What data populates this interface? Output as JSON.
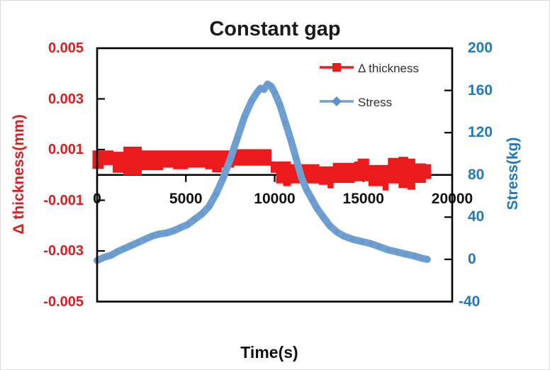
{
  "colors": {
    "thickness_series": "#EC1B1B",
    "thickness_axis_text": "#D61F23",
    "stress_series": "#6EA0D2",
    "stress_marker": "#5E90C6",
    "stress_axis_text": "#2478B8",
    "title_text": "#1A1A1A",
    "tick_text_x": "#111111",
    "legend_text": "#2F2F2F",
    "axis_line": "#000000"
  },
  "chart_data": {
    "type": "line",
    "title": "Constant gap",
    "xlabel": "Time(s)",
    "ylabel_left": "Δ thickness(mm)",
    "ylabel_right": "Stress(kg)",
    "x_range": [
      0,
      20000
    ],
    "left_y_range": [
      -0.005,
      0.005
    ],
    "right_y_range": [
      -40,
      200
    ],
    "x_tick_labels": [
      "0",
      "5000",
      "10000",
      "15000",
      "20000"
    ],
    "left_y_tick_labels": [
      "0.005",
      "0.003",
      "0.001",
      "-0.001",
      "-0.003",
      "-0.005"
    ],
    "right_y_tick_labels": [
      "200",
      "160",
      "120",
      "80",
      "40",
      "0",
      "-40"
    ],
    "grid": false,
    "legend_position": "inside-top-center",
    "legend": [
      {
        "label": "Δ thickness",
        "marker": "square"
      },
      {
        "label": "Stress",
        "marker": "diamond"
      }
    ],
    "series": [
      {
        "name": "Δ thickness",
        "axis": "left",
        "units": "mm",
        "style": "dense noisy band of square markers",
        "band_envelope_x_top_bottom_mm": [
          [
            0,
            0.00095,
            0.00025
          ],
          [
            350,
            0.00095,
            0.0004
          ],
          [
            900,
            0.0009,
            0.0001
          ],
          [
            1500,
            0.0011,
            0.0
          ],
          [
            2500,
            0.00095,
            0.0002
          ],
          [
            3700,
            0.00095,
            0.0003
          ],
          [
            4300,
            0.00095,
            0.00024
          ],
          [
            5100,
            0.00095,
            0.0003
          ],
          [
            6100,
            0.00095,
            0.00024
          ],
          [
            6500,
            0.00095,
            0.00012
          ],
          [
            7000,
            0.00095,
            0.0003
          ],
          [
            7700,
            0.001,
            0.00038
          ],
          [
            9500,
            0.001,
            0.00038
          ],
          [
            9800,
            0.00052,
            0.0001
          ],
          [
            10100,
            0.00052,
            -0.00032
          ],
          [
            10500,
            0.00052,
            -0.00043
          ],
          [
            10900,
            0.00041,
            -0.00032
          ],
          [
            12500,
            0.00032,
            -0.00038
          ],
          [
            13000,
            0.00032,
            -0.00052
          ],
          [
            13300,
            0.00046,
            -0.0003
          ],
          [
            14500,
            0.00052,
            -0.00024
          ],
          [
            14700,
            0.00063,
            -0.00024
          ],
          [
            15300,
            0.00038,
            -0.00043
          ],
          [
            16100,
            0.00038,
            -0.0006
          ],
          [
            16400,
            0.00066,
            -0.00032
          ],
          [
            17000,
            0.0007,
            -0.0005
          ],
          [
            17500,
            0.00063,
            -0.00057
          ],
          [
            17900,
            0.00044,
            -0.0003
          ],
          [
            18500,
            0.00041,
            -0.00015
          ],
          [
            18800,
            0.0004,
            -0.0001
          ]
        ],
        "approx_center_points_x_mm": [
          [
            0,
            0.0006
          ],
          [
            1000,
            0.0005
          ],
          [
            2000,
            0.0006
          ],
          [
            3000,
            0.0006
          ],
          [
            4000,
            0.0006
          ],
          [
            5000,
            0.0006
          ],
          [
            6000,
            0.0006
          ],
          [
            7000,
            0.0007
          ],
          [
            8000,
            0.0007
          ],
          [
            9000,
            0.0007
          ],
          [
            10000,
            0.0002
          ],
          [
            11000,
            0.0001
          ],
          [
            12000,
            0.0
          ],
          [
            13000,
            0.0
          ],
          [
            14000,
            0.0001
          ],
          [
            15000,
            0.0001
          ],
          [
            16000,
            0.0
          ],
          [
            17000,
            0.0001
          ],
          [
            18000,
            0.0001
          ],
          [
            18800,
            0.0001
          ]
        ]
      },
      {
        "name": "Stress",
        "axis": "right",
        "units": "kg",
        "style": "thick line with diamond markers",
        "points_x_kg": [
          [
            0,
            -1
          ],
          [
            400,
            2
          ],
          [
            800,
            4
          ],
          [
            1100,
            7
          ],
          [
            1500,
            10
          ],
          [
            1900,
            13
          ],
          [
            2300,
            16
          ],
          [
            2700,
            19
          ],
          [
            3100,
            22
          ],
          [
            3500,
            24
          ],
          [
            3900,
            25
          ],
          [
            4300,
            27
          ],
          [
            4700,
            30
          ],
          [
            5100,
            33
          ],
          [
            5500,
            38
          ],
          [
            5900,
            43
          ],
          [
            6300,
            50
          ],
          [
            6700,
            62
          ],
          [
            7100,
            77
          ],
          [
            7500,
            95
          ],
          [
            7900,
            115
          ],
          [
            8300,
            135
          ],
          [
            8700,
            150
          ],
          [
            9000,
            158
          ],
          [
            9200,
            162
          ],
          [
            9400,
            161
          ],
          [
            9600,
            166
          ],
          [
            9800,
            164
          ],
          [
            10000,
            158
          ],
          [
            10300,
            146
          ],
          [
            10600,
            130
          ],
          [
            10900,
            114
          ],
          [
            11200,
            96
          ],
          [
            11500,
            78
          ],
          [
            11800,
            66
          ],
          [
            12100,
            57
          ],
          [
            12400,
            48
          ],
          [
            12700,
            41
          ],
          [
            13100,
            32
          ],
          [
            13500,
            26
          ],
          [
            13900,
            22
          ],
          [
            14400,
            19
          ],
          [
            14900,
            17
          ],
          [
            15400,
            15
          ],
          [
            15900,
            12
          ],
          [
            16400,
            9
          ],
          [
            16900,
            7
          ],
          [
            17400,
            5
          ],
          [
            17900,
            3
          ],
          [
            18300,
            1
          ],
          [
            18600,
            0
          ]
        ]
      }
    ]
  }
}
